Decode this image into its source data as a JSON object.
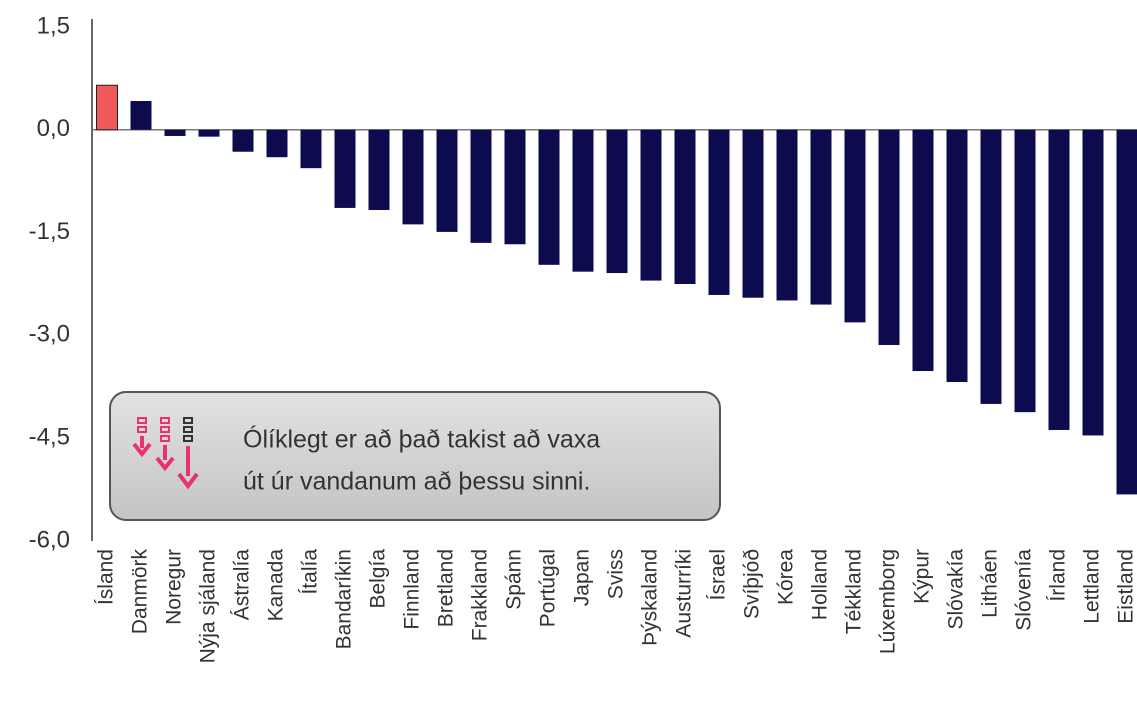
{
  "chart_data": {
    "type": "bar",
    "categories": [
      "Ísland",
      "Danmörk",
      "Noregur",
      "Nýja sjáland",
      "Ástralía",
      "Kanada",
      "Ítalía",
      "Bandaríkin",
      "Belgía",
      "Finnland",
      "Bretland",
      "Frakkland",
      "Spánn",
      "Portúgal",
      "Japan",
      "Sviss",
      "Þýskaland",
      "Austurríki",
      "Ísrael",
      "Svíþjóð",
      "Kórea",
      "Holland",
      "Tékkland",
      "Lúxemborg",
      "Kýpur",
      "Slóvakía",
      "Litháen",
      "Slóvenía",
      "Írland",
      "Lettland",
      "Eistland"
    ],
    "values": [
      0.65,
      0.42,
      -0.09,
      -0.1,
      -0.32,
      -0.4,
      -0.56,
      -1.14,
      -1.17,
      -1.38,
      -1.49,
      -1.65,
      -1.67,
      -1.97,
      -2.07,
      -2.09,
      -2.2,
      -2.25,
      -2.41,
      -2.45,
      -2.49,
      -2.55,
      -2.81,
      -3.14,
      -3.52,
      -3.68,
      -4.0,
      -4.12,
      -4.38,
      -4.46,
      -5.32
    ],
    "colors": [
      "#f05a5a",
      "#0b0b4d",
      "#0b0b4d",
      "#0b0b4d",
      "#0b0b4d",
      "#0b0b4d",
      "#0b0b4d",
      "#0b0b4d",
      "#0b0b4d",
      "#0b0b4d",
      "#0b0b4d",
      "#0b0b4d",
      "#0b0b4d",
      "#0b0b4d",
      "#0b0b4d",
      "#0b0b4d",
      "#0b0b4d",
      "#0b0b4d",
      "#0b0b4d",
      "#0b0b4d",
      "#0b0b4d",
      "#0b0b4d",
      "#0b0b4d",
      "#0b0b4d",
      "#0b0b4d",
      "#0b0b4d",
      "#0b0b4d",
      "#0b0b4d",
      "#0b0b4d",
      "#0b0b4d",
      "#0b0b4d"
    ],
    "ylim": [
      -6.0,
      1.5
    ],
    "yticks": [
      {
        "value": 1.5,
        "label": "1,5"
      },
      {
        "value": 0,
        "label": "0,0"
      },
      {
        "value": -1.5,
        "label": "-1,5"
      },
      {
        "value": -3.0,
        "label": "-3,0"
      },
      {
        "value": -4.5,
        "label": "-4,5"
      },
      {
        "value": -6.0,
        "label": "-6,0"
      }
    ],
    "grid": false,
    "annotation": [
      "Ólíklegt er að það takist að vaxa",
      "út úr vandanum að þessu sinni."
    ]
  }
}
